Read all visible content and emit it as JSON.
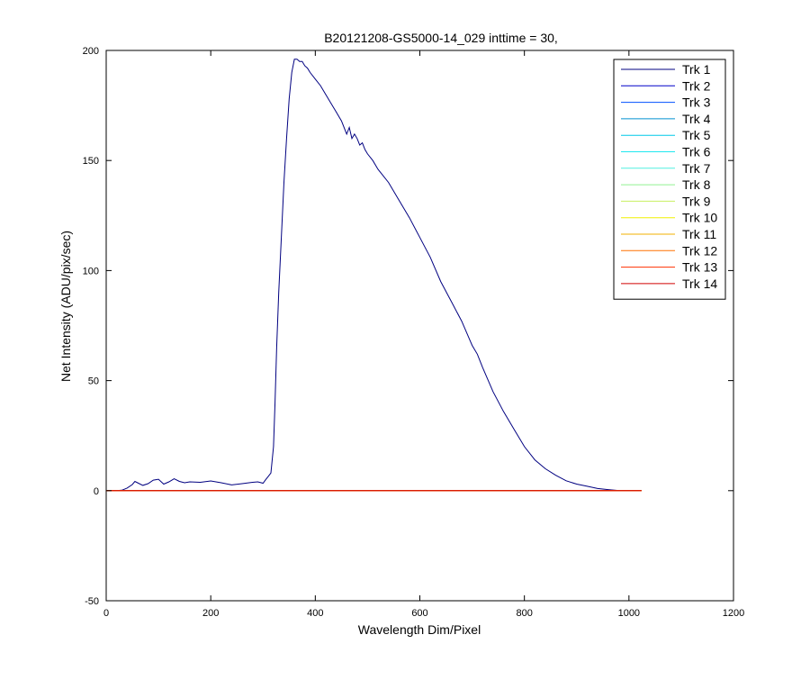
{
  "chart_data": {
    "type": "line",
    "title": "B20121208-GS5000-14_029 inttime = 30,",
    "xlabel": "Wavelength Dim/Pixel",
    "ylabel": "Net Intensity (ADU/pix/sec)",
    "xlim": [
      0,
      1200
    ],
    "ylim": [
      -50,
      200
    ],
    "xticks": [
      0,
      200,
      400,
      600,
      800,
      1000,
      1200
    ],
    "yticks": [
      -50,
      0,
      50,
      100,
      150,
      200
    ],
    "grid": false,
    "legend_position": "top-right",
    "series": [
      {
        "name": "Trk 1",
        "color": "#000080",
        "x": [
          0,
          20,
          30,
          40,
          50,
          55,
          60,
          70,
          80,
          90,
          100,
          110,
          120,
          130,
          140,
          150,
          160,
          180,
          200,
          220,
          240,
          260,
          280,
          290,
          300,
          305,
          310,
          315,
          320,
          323,
          326,
          330,
          335,
          340,
          345,
          350,
          355,
          360,
          365,
          370,
          375,
          380,
          385,
          390,
          400,
          410,
          420,
          430,
          440,
          450,
          460,
          465,
          470,
          475,
          480,
          485,
          490,
          495,
          500,
          510,
          520,
          540,
          560,
          580,
          600,
          620,
          640,
          660,
          680,
          700,
          710,
          720,
          740,
          760,
          780,
          800,
          820,
          840,
          860,
          880,
          900,
          920,
          940,
          960,
          980,
          1000,
          1024
        ],
        "y": [
          0,
          0,
          0.2,
          1.2,
          2.8,
          4.2,
          3.6,
          2.4,
          3.2,
          4.8,
          5.2,
          3,
          4,
          5.4,
          4.2,
          3.6,
          4,
          3.8,
          4.4,
          3.6,
          2.6,
          3.2,
          3.8,
          4,
          3.4,
          5,
          6.5,
          8,
          20,
          40,
          65,
          90,
          115,
          140,
          160,
          178,
          190,
          196,
          196,
          195,
          195,
          193,
          192,
          190,
          187,
          184,
          180,
          176,
          172,
          168,
          162,
          165,
          160,
          162,
          160,
          157,
          158,
          155,
          153,
          150,
          146,
          140,
          132,
          124,
          115,
          106,
          95,
          86,
          77,
          66,
          62,
          56,
          45,
          36,
          28,
          20,
          14,
          10,
          7,
          4.5,
          3,
          2,
          1,
          0.5,
          0.1,
          0,
          0
        ]
      },
      {
        "name": "Trk 2",
        "color": "#0000c8",
        "x": [
          0,
          1024
        ],
        "y": [
          0,
          0
        ]
      },
      {
        "name": "Trk 3",
        "color": "#0050ff",
        "x": [
          0,
          1024
        ],
        "y": [
          0,
          0
        ]
      },
      {
        "name": "Trk 4",
        "color": "#0090d0",
        "x": [
          0,
          1024
        ],
        "y": [
          0,
          0
        ]
      },
      {
        "name": "Trk 5",
        "color": "#00c8e8",
        "x": [
          0,
          1024
        ],
        "y": [
          0,
          0
        ]
      },
      {
        "name": "Trk 6",
        "color": "#20e8f0",
        "x": [
          0,
          1024
        ],
        "y": [
          0,
          0
        ]
      },
      {
        "name": "Trk 7",
        "color": "#50f0e0",
        "x": [
          0,
          1024
        ],
        "y": [
          0,
          0
        ]
      },
      {
        "name": "Trk 8",
        "color": "#90f090",
        "x": [
          0,
          1024
        ],
        "y": [
          0,
          0
        ]
      },
      {
        "name": "Trk 9",
        "color": "#c8f060",
        "x": [
          0,
          1024
        ],
        "y": [
          0,
          0
        ]
      },
      {
        "name": "Trk 10",
        "color": "#f0f000",
        "x": [
          0,
          1024
        ],
        "y": [
          0,
          0
        ]
      },
      {
        "name": "Trk 11",
        "color": "#f0b000",
        "x": [
          0,
          1024
        ],
        "y": [
          0,
          0
        ]
      },
      {
        "name": "Trk 12",
        "color": "#ff7000",
        "x": [
          0,
          1024
        ],
        "y": [
          0,
          0
        ]
      },
      {
        "name": "Trk 13",
        "color": "#ff3000",
        "x": [
          0,
          1024
        ],
        "y": [
          0,
          0
        ]
      },
      {
        "name": "Trk 14",
        "color": "#d00000",
        "x": [
          0,
          1024
        ],
        "y": [
          0,
          0
        ]
      }
    ]
  }
}
